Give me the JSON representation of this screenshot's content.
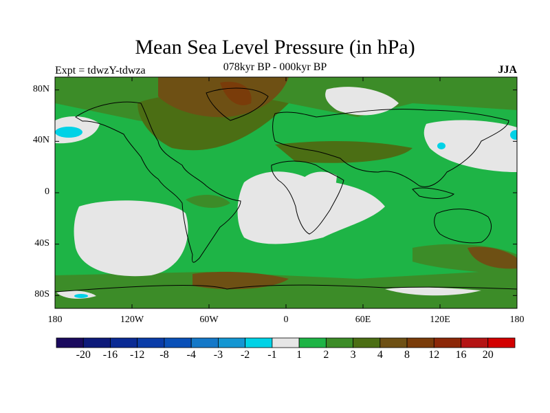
{
  "title": "Mean Sea Level Pressure (in hPa)",
  "experiment": "Expt = tdwzY-tdwza",
  "period": "078kyr BP - 000kyr BP",
  "season": "JJA",
  "lat_labels": [
    "80N",
    "40N",
    "0",
    "40S",
    "80S"
  ],
  "lon_labels": [
    "180",
    "120W",
    "60W",
    "0",
    "60E",
    "120E",
    "180"
  ],
  "colorbar": {
    "colors": [
      "#1a0a5e",
      "#0d1a7a",
      "#0a2a94",
      "#0a3ca8",
      "#0a50b8",
      "#1478c8",
      "#1496d2",
      "#00d2e6",
      "#e6e6e6",
      "#1eb446",
      "#3c8c28",
      "#4b6e14",
      "#6e5014",
      "#7a3c0a",
      "#8c2808",
      "#b41414",
      "#d20000"
    ],
    "labels": [
      "-20",
      "-16",
      "-12",
      "-8",
      "-4",
      "-3",
      "-2",
      "-1",
      "1",
      "2",
      "3",
      "4",
      "8",
      "12",
      "16",
      "20"
    ]
  },
  "regions": {
    "light": "#e6e6e6",
    "green": "#1eb446",
    "olive": "#3c8c28",
    "darkolive": "#4b6e14",
    "brown": "#6e5014",
    "darkbrown": "#7a3c0a",
    "cyan": "#00d2e6"
  }
}
